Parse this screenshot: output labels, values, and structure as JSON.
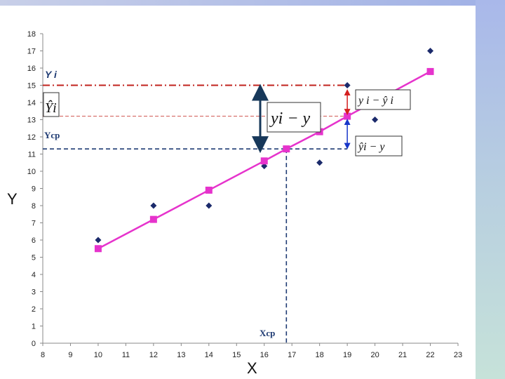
{
  "chart_data": {
    "type": "scatter",
    "title": "",
    "xlabel": "X",
    "ylabel": "Y",
    "xlim": [
      8,
      23
    ],
    "ylim": [
      0,
      18
    ],
    "x_ticks": [
      8,
      9,
      10,
      11,
      12,
      13,
      14,
      15,
      16,
      17,
      18,
      19,
      20,
      21,
      22,
      23
    ],
    "y_ticks": [
      0,
      1,
      2,
      3,
      4,
      5,
      6,
      7,
      8,
      9,
      10,
      11,
      12,
      13,
      14,
      15,
      16,
      17,
      18
    ],
    "grid": false,
    "legend": "none",
    "series": [
      {
        "kind": "observed-points",
        "marker": "diamond",
        "color": "#1b2a6b",
        "points": [
          [
            10,
            6
          ],
          [
            12,
            8
          ],
          [
            14,
            8
          ],
          [
            16,
            10.3
          ],
          [
            18,
            10.5
          ],
          [
            19,
            15
          ],
          [
            20,
            13
          ],
          [
            22,
            17
          ]
        ]
      },
      {
        "kind": "regression-line",
        "marker": "square",
        "color": "#e633cc",
        "points": [
          [
            10,
            5.5
          ],
          [
            12,
            7.2
          ],
          [
            14,
            8.9
          ],
          [
            16,
            10.6
          ],
          [
            16.8,
            11.3
          ],
          [
            18,
            12.3
          ],
          [
            19,
            13.2
          ],
          [
            22,
            15.8
          ]
        ]
      }
    ],
    "reference_lines": {
      "y_i": 15,
      "y_hat_i": 13.2,
      "y_cp": 11.3,
      "x_cp": 16.8
    },
    "annotations": {
      "yi_label": "Y i",
      "ycp_label": "Ycp",
      "xcp_label": "Xcp",
      "yhat_box": "Ŷi",
      "total_dev_box": "yi − y",
      "resid_box": "y i  −  ŷ i",
      "explained_box": "ŷi  −  y"
    },
    "colors": {
      "yi_line": "#c0221c",
      "yhat_line": "#c0221c",
      "ycp_line": "#1f3b73",
      "big_arrow": "#17385a",
      "red_arrow": "#d41f1f",
      "blue_arrow": "#1736c9"
    }
  }
}
